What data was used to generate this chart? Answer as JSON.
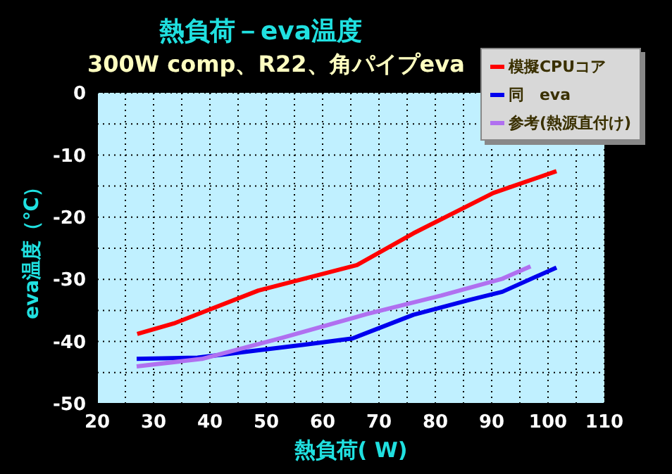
{
  "chart_data": {
    "type": "line",
    "title": "熱負荷－eva温度",
    "subtitle": "300W comp、R22、角パイプeva",
    "xlabel": "熱負荷( W)",
    "ylabel": "eva温度（℃）",
    "xlim": [
      20,
      110
    ],
    "xticks": [
      20,
      {
        "value": 25,
        "label": null
      },
      30,
      {
        "value": 35,
        "label": null
      },
      40,
      {
        "value": 45,
        "label": null
      },
      50,
      {
        "value": 55,
        "label": null
      },
      60,
      {
        "value": 65,
        "label": null
      },
      70,
      {
        "value": 75,
        "label": null
      },
      80,
      {
        "value": 85,
        "label": null
      },
      90,
      {
        "value": 95,
        "label": null
      },
      100,
      {
        "value": 105,
        "label": null
      },
      110
    ],
    "ylim": [
      -50,
      0
    ],
    "yticks": [
      -50,
      {
        "value": -45,
        "label": null
      },
      -40,
      {
        "value": -35,
        "label": null
      },
      -30,
      {
        "value": -25,
        "label": null
      },
      -20,
      {
        "value": -15,
        "label": null
      },
      -10,
      {
        "value": -5,
        "label": null
      },
      0
    ],
    "grid": true,
    "legend": "top right",
    "marker": "none",
    "line_style": "solid",
    "series": [
      {
        "name": "模擬CPUコア",
        "color": "#ff0000",
        "x": [
          27.1,
          33.6,
          48.6,
          66.1,
          76.1,
          90.3,
          101.5
        ],
        "values": [
          -38.8,
          -37.1,
          -31.8,
          -27.7,
          -22.6,
          -16.1,
          -12.6
        ]
      },
      {
        "name": "同　eva",
        "color": "#0000ee",
        "x": [
          27,
          37.8,
          56.9,
          65.3,
          76.1,
          86.1,
          91.9,
          101.5
        ],
        "values": [
          -42.8,
          -42.6,
          -40.5,
          -39.5,
          -35.7,
          -33.3,
          -32,
          -28.1
        ]
      },
      {
        "name": "参考(熱源直付け)",
        "color": "#b070f0",
        "x": [
          27,
          38.6,
          52.8,
          67.8,
          81.1,
          91.9,
          96.9
        ],
        "values": [
          -44,
          -42.8,
          -39.4,
          -35.6,
          -32.6,
          -29.9,
          -27.9
        ]
      }
    ]
  }
}
